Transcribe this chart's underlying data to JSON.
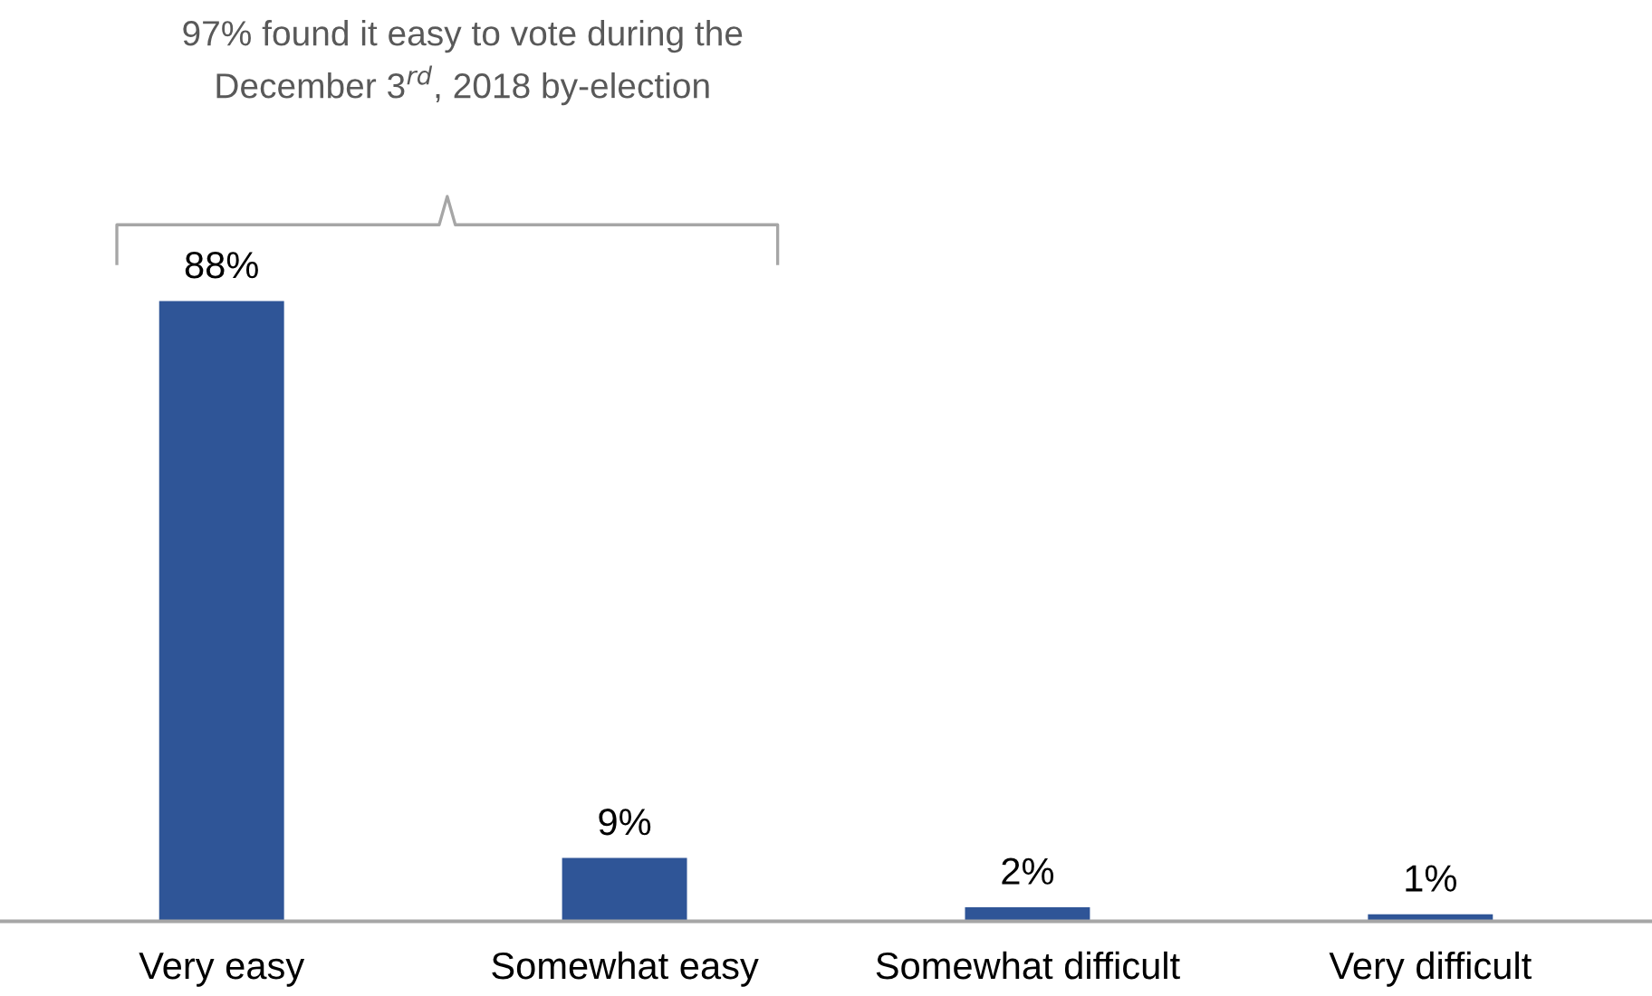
{
  "chart_data": {
    "type": "bar",
    "categories": [
      "Very easy",
      "Somewhat easy",
      "Somewhat difficult",
      "Very difficult"
    ],
    "values": [
      88,
      9,
      2,
      1
    ],
    "color": "#2f5597",
    "data_labels": true,
    "value_labels": [
      "88%",
      "9%",
      "2%",
      "1%"
    ],
    "tick_labels": "x",
    "grid": false,
    "legend": false,
    "annotations": [
      "97% found it easy to vote during the\nDecember 3$^{rd}$, 2018 by-election"
    ]
  }
}
